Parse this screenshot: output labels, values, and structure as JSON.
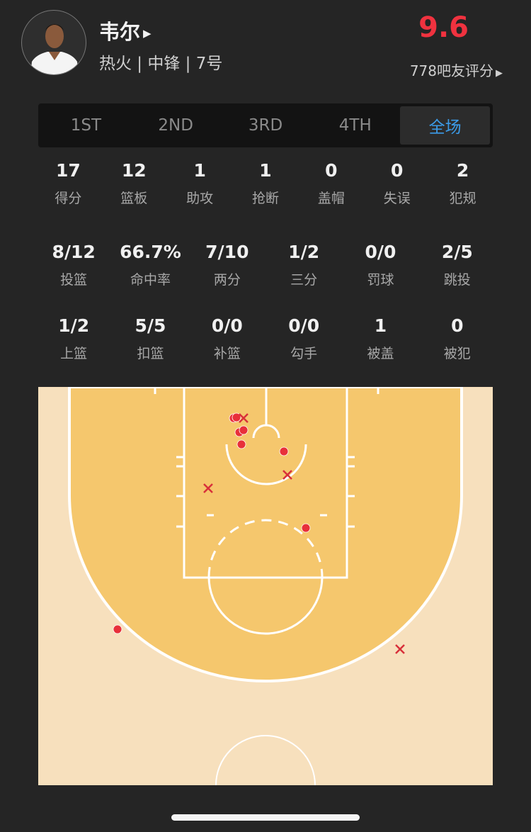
{
  "player": {
    "name": "韦尔",
    "info": "热火 | 中锋 | 7号",
    "rating": "9.6",
    "raters": "778吧友评分",
    "rating_color": "#f0323f"
  },
  "tabs": [
    {
      "label": "1ST"
    },
    {
      "label": "2ND"
    },
    {
      "label": "3RD"
    },
    {
      "label": "4TH"
    },
    {
      "label": "全场",
      "active": true
    }
  ],
  "stats_row1": [
    {
      "v": "17",
      "l": "得分"
    },
    {
      "v": "12",
      "l": "篮板"
    },
    {
      "v": "1",
      "l": "助攻"
    },
    {
      "v": "1",
      "l": "抢断"
    },
    {
      "v": "0",
      "l": "盖帽"
    },
    {
      "v": "0",
      "l": "失误"
    },
    {
      "v": "2",
      "l": "犯规"
    }
  ],
  "stats_row2": [
    {
      "v": "8/12",
      "l": "投篮"
    },
    {
      "v": "66.7%",
      "l": "命中率"
    },
    {
      "v": "7/10",
      "l": "两分"
    },
    {
      "v": "1/2",
      "l": "三分"
    },
    {
      "v": "0/0",
      "l": "罚球"
    },
    {
      "v": "2/5",
      "l": "跳投"
    }
  ],
  "stats_row3": [
    {
      "v": "1/2",
      "l": "上篮"
    },
    {
      "v": "5/5",
      "l": "扣篮"
    },
    {
      "v": "0/0",
      "l": "补篮"
    },
    {
      "v": "0/0",
      "l": "勾手"
    },
    {
      "v": "1",
      "l": "被盖"
    },
    {
      "v": "0",
      "l": "被犯"
    }
  ],
  "shot_chart": {
    "made_color": "#e8303a",
    "miss_color": "#d8303a",
    "shots": [
      {
        "result": "made"
      },
      {
        "result": "made"
      },
      {
        "result": "made"
      },
      {
        "result": "made"
      },
      {
        "result": "made"
      },
      {
        "result": "made"
      },
      {
        "result": "made"
      },
      {
        "result": "made"
      },
      {
        "result": "miss"
      },
      {
        "result": "miss"
      },
      {
        "result": "miss"
      },
      {
        "result": "miss"
      }
    ]
  }
}
